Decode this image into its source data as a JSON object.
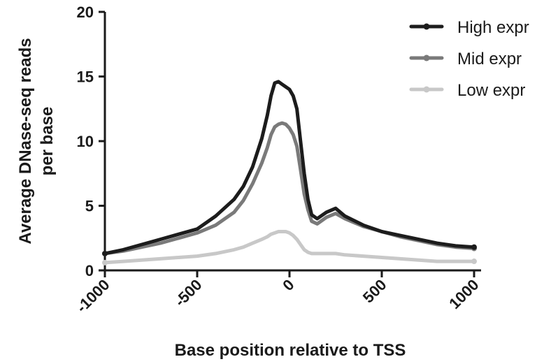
{
  "chart_data": {
    "type": "line",
    "title": "",
    "xlabel": "Base position relative to TSS",
    "ylabel": [
      "Average DNase-seq reads",
      "per base"
    ],
    "xlim": [
      -1000,
      1000
    ],
    "ylim": [
      0,
      20
    ],
    "xticks": [
      -1000,
      -500,
      0,
      500,
      1000
    ],
    "xtick_labels": [
      "-1000",
      "-500",
      "0",
      "500",
      "1000"
    ],
    "yticks": [
      0,
      5,
      10,
      15,
      20
    ],
    "ytick_labels": [
      "0",
      "5",
      "10",
      "15",
      "20"
    ],
    "grid": false,
    "legend_position": "top-right",
    "x": [
      -1000,
      -900,
      -800,
      -700,
      -600,
      -500,
      -400,
      -300,
      -250,
      -200,
      -150,
      -120,
      -100,
      -80,
      -60,
      -40,
      -20,
      0,
      20,
      40,
      60,
      80,
      100,
      120,
      150,
      200,
      250,
      300,
      400,
      500,
      600,
      700,
      800,
      900,
      1000
    ],
    "series": [
      {
        "name": "High expr",
        "color": "#1c1c1c",
        "values": [
          1.3,
          1.6,
          2.0,
          2.4,
          2.8,
          3.2,
          4.2,
          5.5,
          6.5,
          8.0,
          10.2,
          12.0,
          13.5,
          14.5,
          14.6,
          14.4,
          14.2,
          14.0,
          13.5,
          12.5,
          10.0,
          7.5,
          5.5,
          4.3,
          4.0,
          4.5,
          4.8,
          4.2,
          3.5,
          3.0,
          2.7,
          2.4,
          2.1,
          1.9,
          1.8
        ]
      },
      {
        "name": "Mid expr",
        "color": "#7a7a7a",
        "values": [
          1.3,
          1.5,
          1.8,
          2.1,
          2.5,
          2.9,
          3.5,
          4.5,
          5.4,
          6.7,
          8.3,
          9.5,
          10.5,
          11.1,
          11.3,
          11.4,
          11.3,
          11.0,
          10.5,
          9.6,
          7.8,
          5.9,
          4.7,
          3.8,
          3.6,
          4.1,
          4.4,
          4.0,
          3.4,
          3.0,
          2.6,
          2.3,
          2.0,
          1.8,
          1.7
        ]
      },
      {
        "name": "Low expr",
        "color": "#c8c8c8",
        "values": [
          0.6,
          0.7,
          0.8,
          0.9,
          1.0,
          1.1,
          1.3,
          1.6,
          1.8,
          2.1,
          2.4,
          2.6,
          2.8,
          2.9,
          3.0,
          3.0,
          3.0,
          2.9,
          2.7,
          2.4,
          2.0,
          1.6,
          1.4,
          1.3,
          1.3,
          1.3,
          1.3,
          1.2,
          1.1,
          1.0,
          0.9,
          0.8,
          0.7,
          0.7,
          0.7
        ]
      }
    ]
  }
}
